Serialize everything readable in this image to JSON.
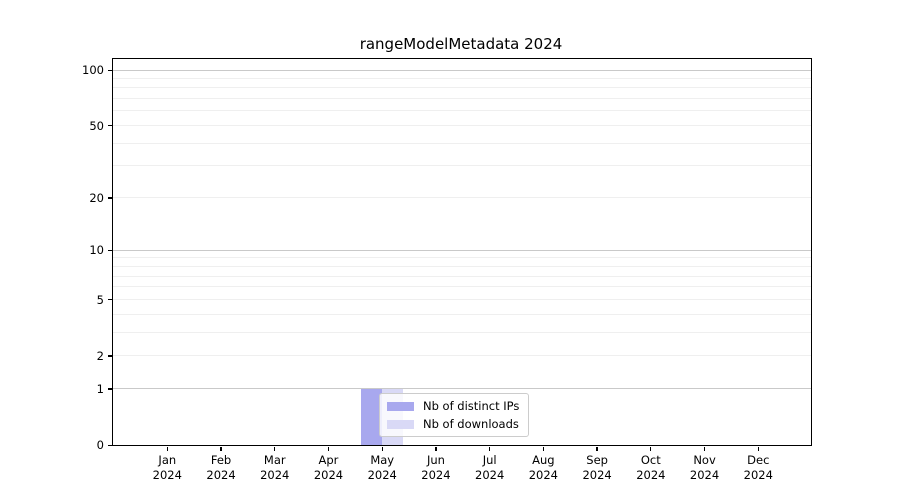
{
  "figure": {
    "background": "#ffffff"
  },
  "chart_data": {
    "type": "bar",
    "title": "rangeModelMetadata 2024",
    "x_categories": [
      "Jan",
      "Feb",
      "Mar",
      "Apr",
      "May",
      "Jun",
      "Jul",
      "Aug",
      "Sep",
      "Oct",
      "Nov",
      "Dec"
    ],
    "x_year_label": "2024",
    "series": [
      {
        "name": "Nb of distinct IPs",
        "color": "#a8a8ee",
        "values": [
          0,
          0,
          0,
          0,
          1,
          0,
          0,
          0,
          0,
          0,
          0,
          0
        ]
      },
      {
        "name": "Nb of downloads",
        "color": "#d9d9f6",
        "values": [
          0,
          0,
          0,
          0,
          1,
          0,
          0,
          0,
          0,
          0,
          0,
          0
        ]
      }
    ],
    "y_scale": "log1p",
    "ylim": [
      0,
      115
    ],
    "y_ticks": [
      0,
      1,
      2,
      5,
      10,
      20,
      50,
      100
    ],
    "y_gridlines": {
      "major": [
        1,
        10,
        100
      ],
      "minor": [
        2,
        3,
        4,
        5,
        6,
        7,
        8,
        9,
        20,
        30,
        40,
        50,
        60,
        70,
        80,
        90
      ]
    },
    "grid": "horizontal",
    "legend_position": "inside-bottom-near-may",
    "axis_color": "#000000",
    "major_grid_color": "#c9c9c9",
    "minor_grid_color": "#efefef"
  }
}
